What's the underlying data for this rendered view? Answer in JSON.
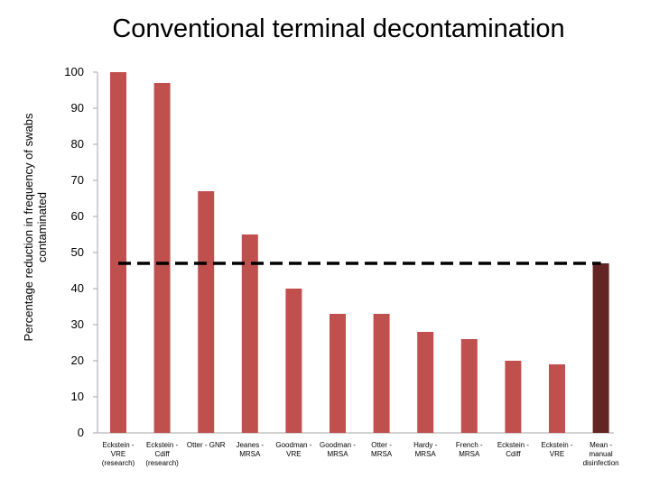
{
  "chart_data": {
    "type": "bar",
    "title": "Conventional terminal decontamination",
    "ylabel": "Percentage reduction in frequency of swabs contaminated",
    "xlabel": "",
    "ylim": [
      0,
      100
    ],
    "yticks": [
      "0",
      "10",
      "20",
      "30",
      "40",
      "50",
      "60",
      "70",
      "80",
      "90",
      "100"
    ],
    "grid": false,
    "legend": "none",
    "categories": [
      "Eckstein - VRE (research)",
      "Eckstein - Cdiff (research)",
      "Otter - GNR",
      "Jeanes - MRSA",
      "Goodman - VRE",
      "Goodman - MRSA",
      "Otter - MRSA",
      "Hardy - MRSA",
      "French - MRSA",
      "Eckstein - Cdiff",
      "Eckstein - VRE",
      "Mean - manual disinfection"
    ],
    "category_label_lines": [
      [
        "Eckstein -",
        "VRE",
        "(research)"
      ],
      [
        "Eckstein -",
        "Cdiff",
        "(research)"
      ],
      [
        "Otter - GNR"
      ],
      [
        "Jeanes -",
        "MRSA"
      ],
      [
        "Goodman -",
        "VRE"
      ],
      [
        "Goodman -",
        "MRSA"
      ],
      [
        "Otter -",
        "MRSA"
      ],
      [
        "Hardy -",
        "MRSA"
      ],
      [
        "French -",
        "MRSA"
      ],
      [
        "Eckstein -",
        "Cdiff"
      ],
      [
        "Eckstein -",
        "VRE"
      ],
      [
        "Mean -",
        "manual",
        "disinfection"
      ]
    ],
    "values": [
      100,
      97,
      67,
      55,
      40,
      33,
      33,
      28,
      26,
      20,
      19,
      47
    ],
    "reference_line": {
      "value": 47,
      "style": "dashed",
      "color": "#000000"
    },
    "colors": {
      "bar": "#C0504D",
      "mean_bar": "#632523",
      "axis": "#a6a6a6"
    }
  }
}
